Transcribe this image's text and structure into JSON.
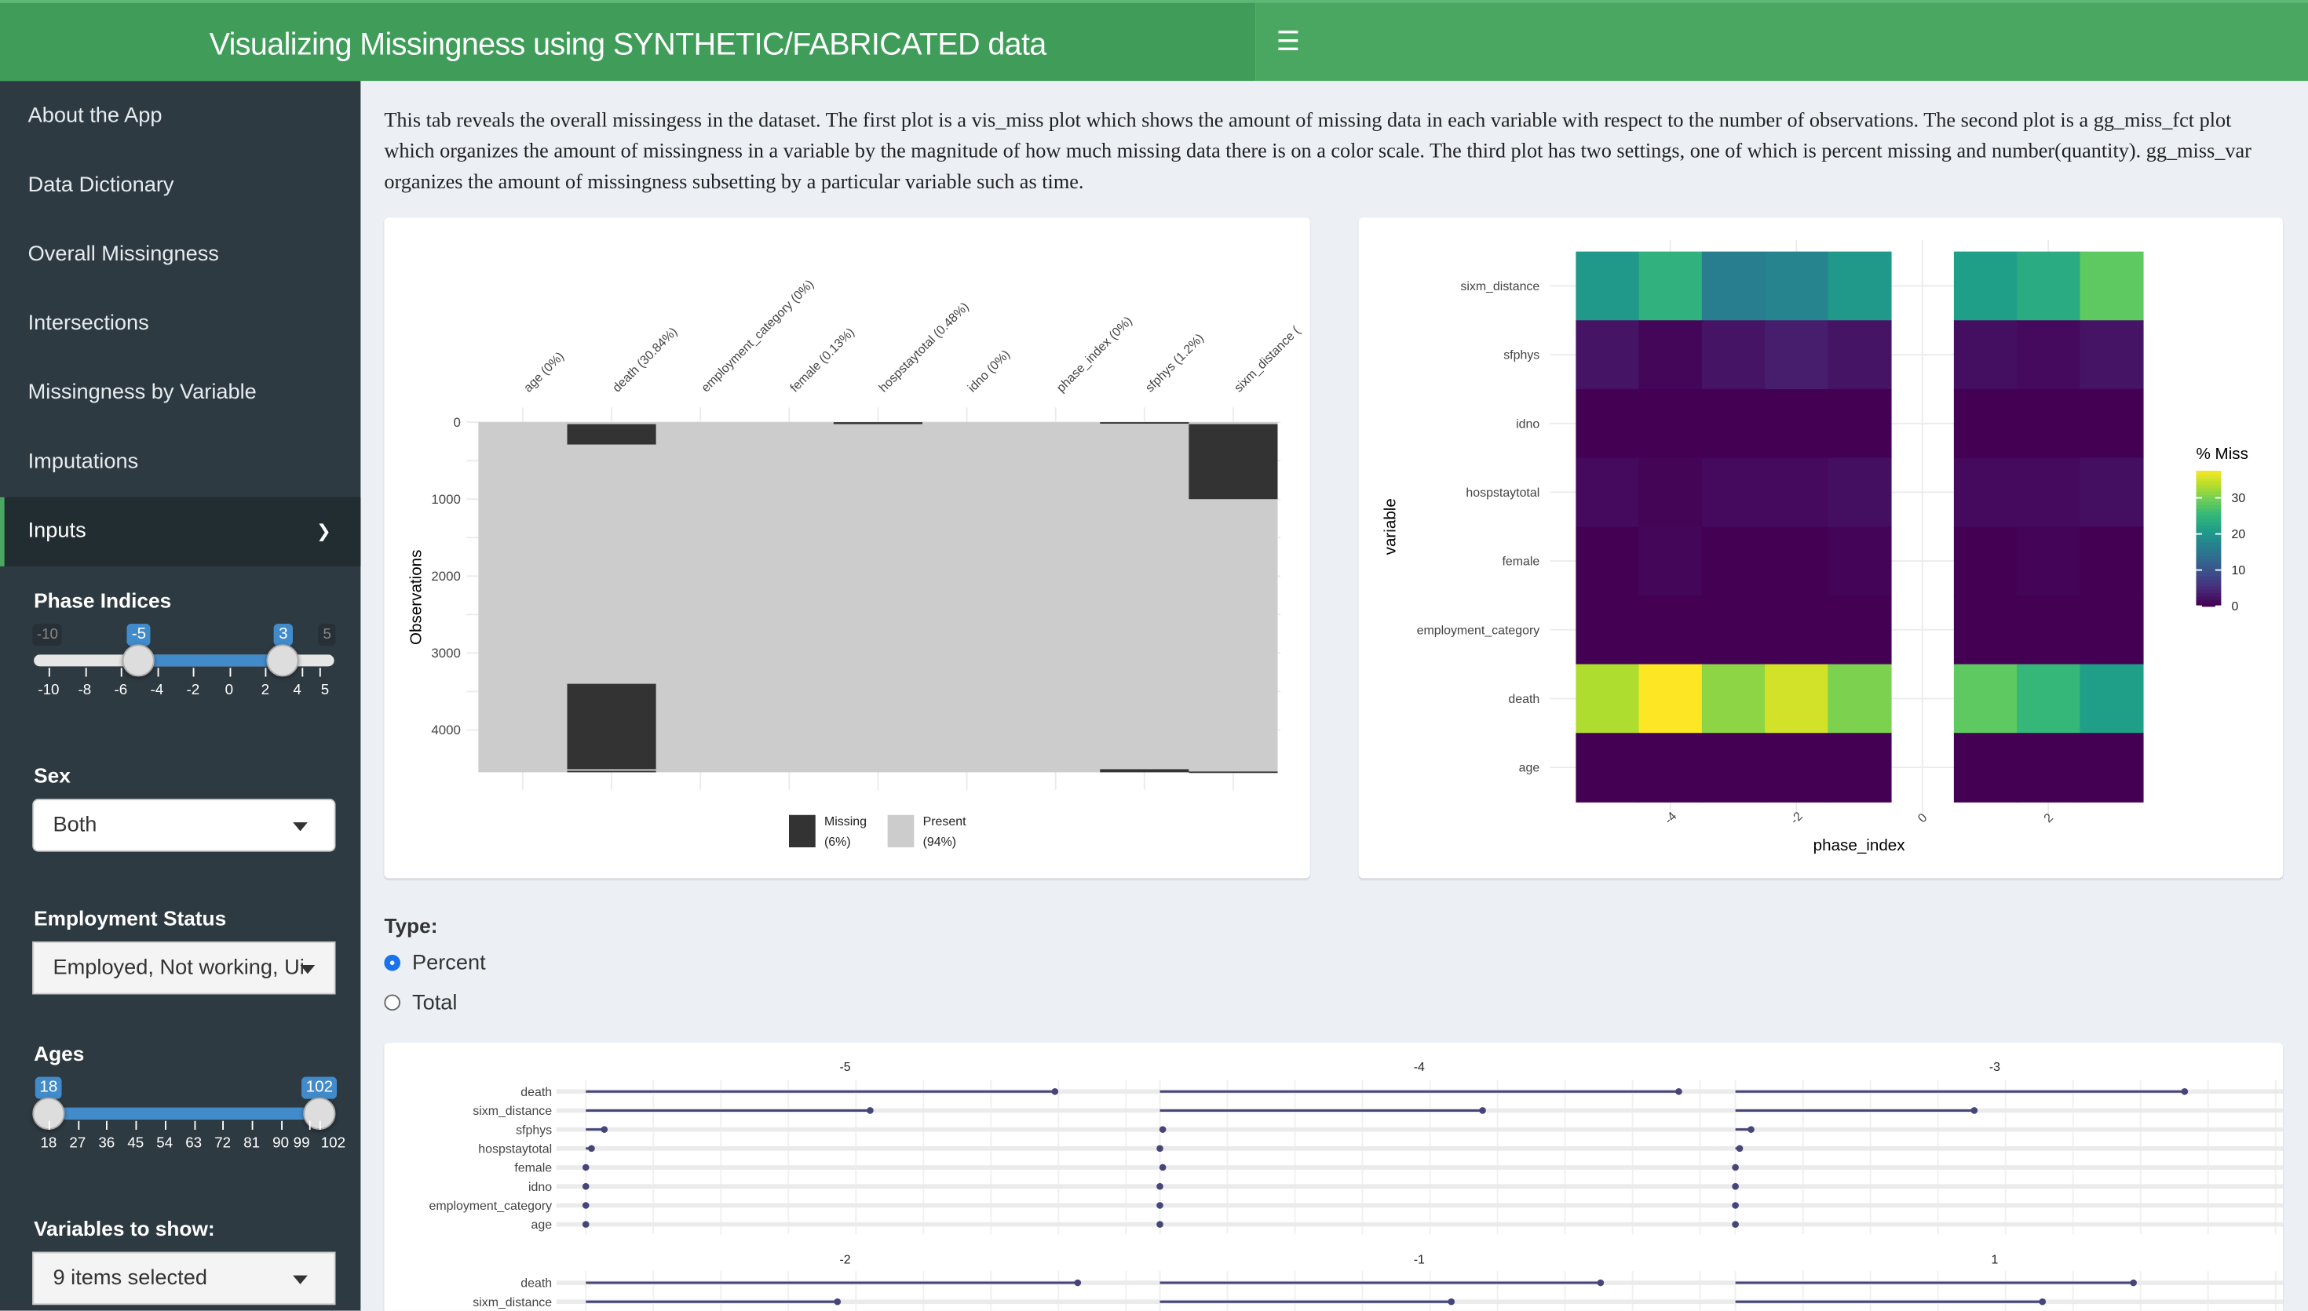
{
  "header": {
    "title": "Visualizing Missingness using SYNTHETIC/FABRICATED data",
    "menu_icon": "hamburger-icon"
  },
  "sidebar": {
    "items": [
      {
        "label": "About the App"
      },
      {
        "label": "Data Dictionary"
      },
      {
        "label": "Overall Missingness"
      },
      {
        "label": "Intersections"
      },
      {
        "label": "Missingness by Variable"
      },
      {
        "label": "Imputations"
      },
      {
        "label": "Inputs"
      }
    ],
    "inputs": {
      "phase": {
        "label": "Phase Indices",
        "min": -10,
        "max": 5,
        "from": -5,
        "to": 3,
        "min_label": "-10",
        "max_label": "5",
        "from_label": "-5",
        "to_label": "3",
        "ticks": [
          "-10",
          "-8",
          "-6",
          "-4",
          "-2",
          "0",
          "2",
          "4",
          "5"
        ]
      },
      "sex": {
        "label": "Sex",
        "value": "Both"
      },
      "employment": {
        "label": "Employment Status",
        "value": "Employed, Not working, Ui"
      },
      "ages": {
        "label": "Ages",
        "min": 18,
        "max": 102,
        "from": 18,
        "to": 102,
        "from_label": "18",
        "to_label": "102",
        "ticks": [
          "18",
          "27",
          "36",
          "45",
          "54",
          "63",
          "72",
          "81",
          "90",
          "99",
          "102"
        ]
      },
      "variables": {
        "label": "Variables to show:",
        "value": "9 items selected"
      }
    }
  },
  "main": {
    "description": "This tab reveals the overall missingess in the dataset. The first plot is a vis_miss plot which shows the amount of missing data in each variable with respect to the number of observations. The second plot is a gg_miss_fct plot which organizes the amount of missingness in a variable by the magnitude of how much missing data there is on a color scale. The third plot has two settings, one of which is percent missing and number(quantity). gg_miss_var organizes the amount of missingness subsetting by a particular variable such as time.",
    "type": {
      "label": "Type:",
      "options": [
        "Percent",
        "Total"
      ],
      "selected": "Percent"
    }
  },
  "chart_data": [
    {
      "type": "heatmap",
      "subtype": "vis_miss",
      "ylabel": "Observations",
      "ylim": [
        0,
        4550
      ],
      "y_ticks": [
        "0",
        "1000",
        "2000",
        "3000",
        "4000"
      ],
      "columns": [
        "age (0%)",
        "death (30.84%)",
        "employment_category (0%)",
        "female (0.13%)",
        "hospstaytotal (0.48%)",
        "idno (0%)",
        "phase_index (0%)",
        "sfphys (1.2%)",
        "sixm_distance ("
      ],
      "missing_ranges": [
        [],
        [
          [
            25,
            290
          ],
          [
            3400,
            4510
          ],
          [
            4530,
            4550
          ]
        ],
        [],
        [],
        [
          [
            0,
            25
          ]
        ],
        [],
        [],
        [
          [
            0,
            15
          ],
          [
            4510,
            4550
          ]
        ],
        [
          [
            25,
            1000
          ],
          [
            4540,
            4550
          ]
        ]
      ],
      "legend": [
        {
          "label": "Missing",
          "pct": "(6%)",
          "color": "#333333"
        },
        {
          "label": "Present",
          "pct": "(94%)",
          "color": "#cccccc"
        }
      ]
    },
    {
      "type": "heatmap",
      "subtype": "gg_miss_fct",
      "xlabel": "phase_index",
      "ylabel": "variable",
      "x_ticks": [
        "-4",
        "-2",
        "0",
        "2"
      ],
      "x": [
        -5,
        -4,
        -3,
        -2,
        -1,
        1,
        2,
        3
      ],
      "variables": [
        "sixm_distance",
        "sfphys",
        "idno",
        "hospstaytotal",
        "female",
        "employment_category",
        "death",
        "age"
      ],
      "values": [
        [
          20,
          24,
          16,
          17,
          20,
          21,
          23,
          28
        ],
        [
          2,
          0.5,
          2,
          3,
          2,
          1.5,
          1,
          2
        ],
        [
          0,
          0,
          0,
          0,
          0,
          0,
          0,
          0
        ],
        [
          1,
          0.4,
          1,
          1,
          1.5,
          1,
          1,
          1.5
        ],
        [
          0,
          0.5,
          0,
          0,
          0.3,
          0,
          0.3,
          0
        ],
        [
          0,
          0,
          0,
          0,
          0,
          0,
          0,
          0
        ],
        [
          33,
          38,
          31,
          35,
          30,
          28,
          25,
          21
        ],
        [
          0,
          0,
          0,
          0,
          0,
          0,
          0,
          0
        ]
      ],
      "legend": {
        "title": "% Miss",
        "ticks": [
          "0",
          "10",
          "20",
          "30"
        ],
        "range": [
          0,
          37.5
        ],
        "palette": "viridis"
      }
    },
    {
      "type": "lollipop",
      "subtype": "gg_miss_var",
      "xlim": [
        0,
        38
      ],
      "variables": [
        "death",
        "sixm_distance",
        "sfphys",
        "hospstaytotal",
        "female",
        "idno",
        "employment_category",
        "age"
      ],
      "facets": [
        {
          "label": "-5",
          "values": [
            33,
            20,
            1.3,
            0.4,
            0,
            0,
            0,
            0
          ]
        },
        {
          "label": "-4",
          "values": [
            36.5,
            22.7,
            0.2,
            0,
            0.2,
            0,
            0,
            0
          ]
        },
        {
          "label": "-3",
          "values": [
            31.6,
            16.8,
            1.1,
            0.3,
            0,
            0,
            0,
            0
          ]
        },
        {
          "label": "-2",
          "values": [
            34.6,
            17.7
          ]
        },
        {
          "label": "-1",
          "values": [
            31,
            20.5
          ]
        },
        {
          "label": "1",
          "values": [
            28,
            21.6
          ]
        }
      ],
      "color": "#45457a"
    }
  ]
}
